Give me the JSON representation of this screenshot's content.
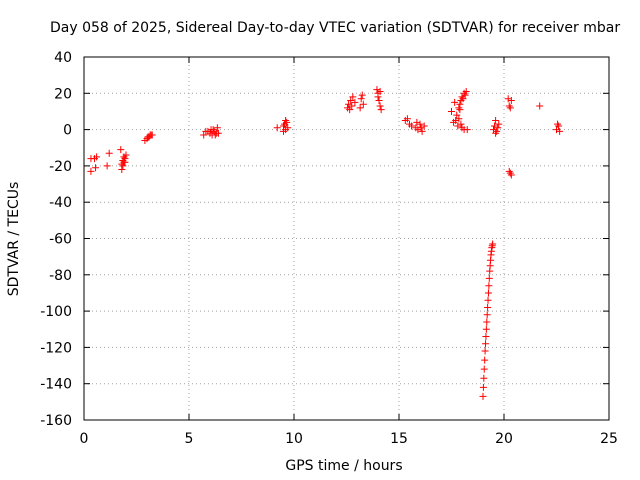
{
  "chart_data": {
    "type": "scatter",
    "title": "Day 058 of 2025, Sidereal Day-to-day VTEC variation (SDTVAR) for receiver mbar",
    "xlabel": "GPS time / hours",
    "ylabel": "SDTVAR / TECUs",
    "xlim": [
      0,
      25
    ],
    "ylim": [
      -160,
      40
    ],
    "xticks": [
      0,
      5,
      10,
      15,
      20,
      25
    ],
    "yticks": [
      -160,
      -140,
      -120,
      -100,
      -80,
      -60,
      -40,
      -20,
      0,
      20,
      40
    ],
    "grid": true,
    "marker": "+",
    "color": "#ff0000",
    "series": [
      {
        "name": "SDTVAR",
        "x": [
          0.33,
          0.5,
          0.6,
          0.33,
          0.55,
          1.1,
          1.2,
          1.75,
          1.8,
          1.85,
          1.9,
          1.95,
          2.0,
          1.8,
          1.85,
          1.9,
          1.95,
          2.9,
          3.0,
          3.05,
          3.1,
          3.15,
          3.2,
          3.25,
          5.7,
          5.9,
          6.0,
          6.1,
          6.15,
          6.2,
          6.3,
          6.35,
          6.4,
          5.8,
          6.05,
          6.25,
          9.2,
          9.5,
          9.55,
          9.6,
          9.65,
          9.7,
          9.5,
          9.6,
          12.55,
          12.6,
          12.7,
          12.8,
          12.9,
          13.2,
          13.3,
          13.25,
          12.65,
          12.75,
          13.15,
          13.95,
          14.0,
          14.05,
          14.1,
          14.15,
          14.0,
          14.1,
          15.3,
          15.4,
          15.5,
          15.6,
          15.8,
          15.9,
          16.0,
          16.1,
          16.2,
          15.85,
          16.05,
          17.5,
          17.6,
          17.7,
          17.8,
          17.85,
          17.9,
          17.95,
          18.0,
          18.05,
          18.1,
          18.15,
          18.2,
          18.25,
          17.75,
          17.85,
          17.95,
          18.0,
          17.65,
          17.9,
          18.1,
          19.5,
          19.55,
          19.6,
          19.65,
          19.7,
          19.75,
          19.6,
          20.2,
          20.25,
          20.3,
          20.35,
          20.25,
          20.3,
          20.35,
          21.7,
          22.5,
          22.55,
          22.6,
          22.65,
          19.0,
          19.02,
          19.04,
          19.06,
          19.08,
          19.1,
          19.12,
          19.14,
          19.16,
          19.18,
          19.2,
          19.22,
          19.24,
          19.26,
          19.28,
          19.3,
          19.32,
          19.34,
          19.36,
          19.38,
          19.4,
          19.42,
          19.44,
          19.46
        ],
        "y": [
          -23,
          -16,
          -15,
          -16,
          -21,
          -20,
          -13,
          -11,
          -19,
          -17,
          -15,
          -18,
          -14,
          -22,
          -20,
          -18,
          -16,
          -6,
          -5,
          -4,
          -4,
          -3,
          -3,
          -3,
          -3,
          -1,
          -2,
          -3,
          0,
          -1,
          -2,
          1,
          -2,
          -1,
          0,
          -3,
          1,
          2,
          3,
          0,
          4,
          1,
          -1,
          5,
          12,
          14,
          16,
          18,
          15,
          17,
          14,
          19,
          11,
          13,
          12,
          22,
          20,
          16,
          13,
          11,
          18,
          21,
          5,
          6,
          3,
          2,
          1,
          0,
          3,
          -1,
          2,
          4,
          1,
          10,
          4,
          5,
          2,
          12,
          14,
          16,
          18,
          17,
          20,
          19,
          21,
          0,
          8,
          6,
          3,
          1,
          15,
          11,
          0,
          0,
          2,
          5,
          -1,
          1,
          3,
          -2,
          17,
          13,
          12,
          16,
          -23,
          -24,
          -25,
          13,
          0,
          3,
          2,
          -1,
          -147,
          -142,
          -137,
          -132,
          -127,
          -122,
          -118,
          -114,
          -110,
          -106,
          -102,
          -98,
          -94,
          -90,
          -86,
          -82,
          -78,
          -75,
          -72,
          -69,
          -67,
          -65,
          -64,
          -63
        ]
      }
    ]
  }
}
